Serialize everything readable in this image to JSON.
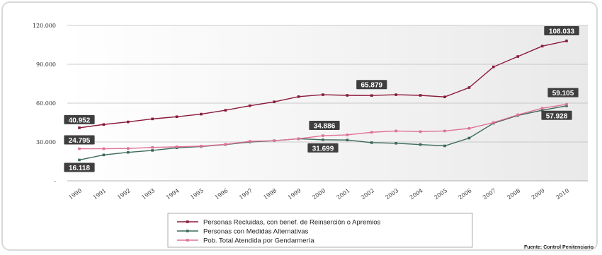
{
  "chart_data": {
    "type": "line",
    "categories": [
      "1990",
      "1991",
      "1992",
      "1993",
      "1994",
      "1995",
      "1996",
      "1997",
      "1998",
      "1999",
      "2000",
      "2001",
      "2002",
      "2003",
      "2004",
      "2005",
      "2006",
      "2007",
      "2008",
      "2009",
      "2010"
    ],
    "ylim": [
      0,
      120000
    ],
    "yticks": [
      {
        "value": 0,
        "label": "-"
      },
      {
        "value": 30000,
        "label": "30.000"
      },
      {
        "value": 60000,
        "label": "60.000"
      },
      {
        "value": 90000,
        "label": "90.000"
      },
      {
        "value": 120000,
        "label": "120.000"
      }
    ],
    "grid": true,
    "series": [
      {
        "name": "Personas Recluidas, con benef. de Reinserción o Apremios",
        "color": "#8b1a3a",
        "values": [
          40952,
          43500,
          45500,
          47800,
          49500,
          51500,
          54500,
          58000,
          61000,
          65000,
          66500,
          66000,
          65879,
          66500,
          66000,
          64800,
          72000,
          88000,
          96000,
          104000,
          108033
        ]
      },
      {
        "name": "Personas con Medidas Alternativas",
        "color": "#3d6b5a",
        "values": [
          16118,
          20000,
          22000,
          23500,
          25500,
          26500,
          28000,
          30000,
          31000,
          32500,
          31699,
          31500,
          29500,
          29000,
          28000,
          27000,
          33000,
          44500,
          50500,
          54500,
          57928
        ]
      },
      {
        "name": "Pob. Total Atendida por Gendarmería",
        "color": "#e0709a",
        "values": [
          24795,
          24800,
          25000,
          25800,
          26300,
          26800,
          28200,
          30500,
          31000,
          32500,
          34886,
          35500,
          37500,
          38500,
          38000,
          38500,
          40500,
          45000,
          51000,
          56000,
          59105
        ]
      }
    ],
    "callouts": [
      {
        "label": "40.952",
        "series": 0,
        "index": 0
      },
      {
        "label": "24.795",
        "series": 2,
        "index": 0
      },
      {
        "label": "16.118",
        "series": 1,
        "index": 0
      },
      {
        "label": "34.886",
        "series": 2,
        "index": 10
      },
      {
        "label": "31.699",
        "series": 1,
        "index": 10
      },
      {
        "label": "65.879",
        "series": 0,
        "index": 12
      },
      {
        "label": "108.033",
        "series": 0,
        "index": 20
      },
      {
        "label": "59.105",
        "series": 2,
        "index": 20
      },
      {
        "label": "57.928",
        "series": 1,
        "index": 20
      }
    ],
    "legend_placement": "bottom",
    "source": "Fuente: Control Penitenciario"
  }
}
